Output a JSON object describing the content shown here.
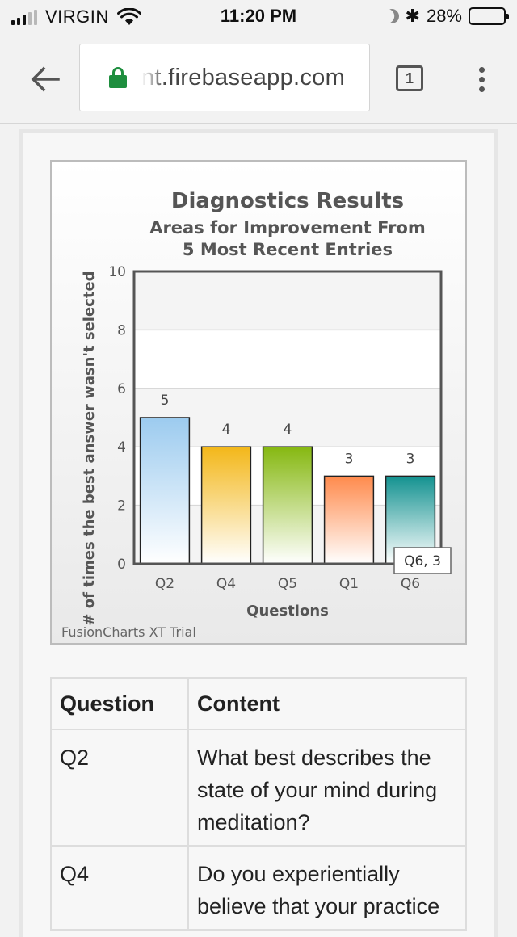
{
  "status_bar": {
    "carrier": "VIRGIN",
    "time": "11:20 PM",
    "battery_text": "28%",
    "battery_level": 0.28,
    "icons": [
      "signal-icon",
      "wifi-icon",
      "moon-icon",
      "bluetooth-icon",
      "battery-icon"
    ]
  },
  "browser": {
    "url": "nt.firebaseapp.com",
    "tab_count": "1",
    "icons": [
      "back-arrow-icon",
      "lock-icon",
      "tab-switcher-icon",
      "more-menu-icon"
    ],
    "colors": {
      "lock": "#1e8e3e"
    }
  },
  "chart_data": {
    "type": "bar",
    "title": "Diagnostics Results",
    "subtitle": [
      "Areas for Improvement From",
      "5 Most Recent Entries"
    ],
    "xlabel": "Questions",
    "ylabel": "# of times the best answer wasn't selected",
    "categories": [
      "Q2",
      "Q4",
      "Q5",
      "Q1",
      "Q6"
    ],
    "values": [
      5,
      4,
      4,
      3,
      3
    ],
    "data_labels": [
      "5",
      "4",
      "4",
      "3",
      "3"
    ],
    "ylim": [
      0,
      10
    ],
    "yticks": [
      0,
      2,
      4,
      6,
      8,
      10
    ],
    "ytick_labels": [
      "0",
      "2",
      "4",
      "6",
      "8",
      "10"
    ],
    "grid": true,
    "colors": [
      "#9ccbef",
      "#f3b719",
      "#86b811",
      "#ff8a4c",
      "#139290"
    ],
    "tooltip": "Q6, 3",
    "watermark": "FusionCharts XT Trial"
  },
  "table": {
    "headers": [
      "Question",
      "Content"
    ],
    "rows": [
      {
        "question": "Q2",
        "content": "What best describes the state of your mind during meditation?"
      },
      {
        "question": "Q4",
        "content": "Do you experientially believe that your practice"
      }
    ]
  }
}
